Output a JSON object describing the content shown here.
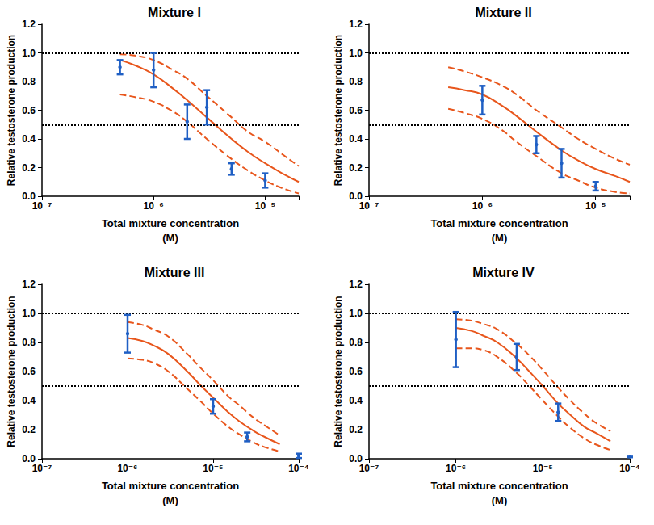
{
  "chart_data": [
    {
      "type": "line",
      "title": "Mixture I",
      "x_label": "Total mixture concentration\n(M)",
      "y_label": "Relative testosterone production",
      "log": "x",
      "grid": false,
      "xlim": [
        1e-07,
        2e-05
      ],
      "xticks": [
        {
          "value": 1e-07,
          "label": "10⁻⁷"
        },
        {
          "value": 1e-06,
          "label": "10⁻⁶"
        },
        {
          "value": 1e-05,
          "label": "10⁻⁵"
        }
      ],
      "ylim": [
        0,
        1.2
      ],
      "yticks": [
        {
          "value": 0,
          "label": "0.0"
        },
        {
          "value": 0.2,
          "label": "0.2"
        },
        {
          "value": 0.4,
          "label": "0.4"
        },
        {
          "value": 0.6,
          "label": "0.6"
        },
        {
          "value": 0.8,
          "label": "0.8"
        },
        {
          "value": 1,
          "label": "1.0"
        },
        {
          "value": 1.2,
          "label": "1.2"
        }
      ],
      "hlines": [
        1,
        0.5
      ],
      "x": [
        5e-07,
        7e-07,
        1e-06,
        1.5e-06,
        2e-06,
        3e-06,
        5e-06,
        7e-06,
        1e-05,
        1.5e-05,
        2e-05
      ],
      "series": [
        {
          "type": "line",
          "line_style": "solid",
          "color": "#e8561c",
          "values": [
            0.95,
            0.91,
            0.85,
            0.75,
            0.67,
            0.55,
            0.4,
            0.31,
            0.23,
            0.15,
            0.1
          ]
        },
        {
          "type": "line",
          "line_style": "dashed",
          "color": "#e8561c",
          "values": [
            0.99,
            0.98,
            0.95,
            0.88,
            0.82,
            0.7,
            0.55,
            0.45,
            0.38,
            0.28,
            0.21
          ]
        },
        {
          "type": "line",
          "line_style": "dashed",
          "color": "#e8561c",
          "values": [
            0.71,
            0.69,
            0.66,
            0.59,
            0.52,
            0.4,
            0.26,
            0.18,
            0.11,
            0.05,
            0.02
          ]
        },
        {
          "type": "scatter",
          "marker": "circle",
          "color": "#1f5fc4",
          "x": [
            5e-07,
            1e-06,
            2e-06,
            3e-06,
            5e-06,
            1e-05
          ],
          "values": [
            0.9,
            0.88,
            0.52,
            0.62,
            0.19,
            0.11
          ],
          "yerr": [
            0.05,
            0.12,
            0.12,
            0.12,
            0.04,
            0.05
          ]
        }
      ]
    },
    {
      "type": "line",
      "title": "Mixture II",
      "x_label": "Total mixture concentration\n(M)",
      "y_label": "Relative testosterone production",
      "log": "x",
      "grid": false,
      "xlim": [
        1e-07,
        2e-05
      ],
      "xticks": [
        {
          "value": 1e-07,
          "label": "10⁻⁷"
        },
        {
          "value": 1e-06,
          "label": "10⁻⁶"
        },
        {
          "value": 1e-05,
          "label": "10⁻⁵"
        }
      ],
      "ylim": [
        0,
        1.2
      ],
      "yticks": [
        {
          "value": 0,
          "label": "0.0"
        },
        {
          "value": 0.2,
          "label": "0.2"
        },
        {
          "value": 0.4,
          "label": "0.4"
        },
        {
          "value": 0.6,
          "label": "0.6"
        },
        {
          "value": 0.8,
          "label": "0.8"
        },
        {
          "value": 1,
          "label": "1.0"
        },
        {
          "value": 1.2,
          "label": "1.2"
        }
      ],
      "hlines": [
        1,
        0.5
      ],
      "x": [
        5e-07,
        7e-07,
        1e-06,
        1.5e-06,
        2e-06,
        3e-06,
        5e-06,
        7e-06,
        1e-05,
        1.5e-05,
        2e-05
      ],
      "series": [
        {
          "type": "line",
          "line_style": "solid",
          "color": "#e8561c",
          "values": [
            0.76,
            0.74,
            0.71,
            0.63,
            0.56,
            0.45,
            0.32,
            0.25,
            0.19,
            0.14,
            0.1
          ]
        },
        {
          "type": "line",
          "line_style": "dashed",
          "color": "#e8561c",
          "values": [
            0.9,
            0.87,
            0.83,
            0.77,
            0.71,
            0.6,
            0.48,
            0.4,
            0.33,
            0.26,
            0.22
          ]
        },
        {
          "type": "line",
          "line_style": "dashed",
          "color": "#e8561c",
          "values": [
            0.61,
            0.58,
            0.54,
            0.46,
            0.38,
            0.28,
            0.16,
            0.11,
            0.06,
            0.03,
            0.02
          ]
        },
        {
          "type": "scatter",
          "marker": "circle",
          "color": "#1f5fc4",
          "x": [
            1e-06,
            3e-06,
            5e-06,
            1e-05
          ],
          "values": [
            0.67,
            0.36,
            0.23,
            0.07
          ],
          "yerr": [
            0.1,
            0.06,
            0.1,
            0.03
          ]
        }
      ]
    },
    {
      "type": "line",
      "title": "Mixture III",
      "x_label": "Total mixture concentration\n(M)",
      "y_label": "Relative testosterone production",
      "log": "x",
      "grid": false,
      "xlim": [
        1e-07,
        0.0001
      ],
      "xticks": [
        {
          "value": 1e-07,
          "label": "10⁻⁷"
        },
        {
          "value": 1e-06,
          "label": "10⁻⁶"
        },
        {
          "value": 1e-05,
          "label": "10⁻⁵"
        },
        {
          "value": 0.0001,
          "label": "10⁻⁴"
        }
      ],
      "ylim": [
        0,
        1.2
      ],
      "yticks": [
        {
          "value": 0,
          "label": "0.0"
        },
        {
          "value": 0.2,
          "label": "0.2"
        },
        {
          "value": 0.4,
          "label": "0.4"
        },
        {
          "value": 0.6,
          "label": "0.6"
        },
        {
          "value": 0.8,
          "label": "0.8"
        },
        {
          "value": 1,
          "label": "1.0"
        },
        {
          "value": 1.2,
          "label": "1.2"
        }
      ],
      "hlines": [
        1,
        0.5
      ],
      "x": [
        1e-06,
        1.5e-06,
        2e-06,
        3e-06,
        5e-06,
        7e-06,
        1e-05,
        1.5e-05,
        2e-05,
        3e-05,
        4e-05,
        6e-05
      ],
      "series": [
        {
          "type": "line",
          "line_style": "solid",
          "color": "#e8561c",
          "values": [
            0.83,
            0.81,
            0.78,
            0.72,
            0.6,
            0.51,
            0.42,
            0.32,
            0.26,
            0.19,
            0.15,
            0.1
          ]
        },
        {
          "type": "line",
          "line_style": "dashed",
          "color": "#e8561c",
          "values": [
            0.94,
            0.92,
            0.89,
            0.84,
            0.72,
            0.63,
            0.54,
            0.43,
            0.37,
            0.28,
            0.23,
            0.16
          ]
        },
        {
          "type": "line",
          "line_style": "dashed",
          "color": "#e8561c",
          "values": [
            0.69,
            0.68,
            0.66,
            0.6,
            0.48,
            0.4,
            0.31,
            0.22,
            0.17,
            0.11,
            0.08,
            0.05
          ]
        },
        {
          "type": "scatter",
          "marker": "circle",
          "color": "#1f5fc4",
          "x": [
            1e-06,
            1e-05,
            2.5e-05,
            0.0001
          ],
          "values": [
            0.86,
            0.36,
            0.15,
            0.02
          ],
          "yerr": [
            0.13,
            0.05,
            0.03,
            0.015
          ]
        }
      ]
    },
    {
      "type": "line",
      "title": "Mixture IV",
      "x_label": "Total mixture concentration\n(M)",
      "y_label": "Relative testosterone production",
      "log": "x",
      "grid": false,
      "xlim": [
        1e-07,
        0.0001
      ],
      "xticks": [
        {
          "value": 1e-07,
          "label": "10⁻⁷"
        },
        {
          "value": 1e-06,
          "label": "10⁻⁶"
        },
        {
          "value": 1e-05,
          "label": "10⁻⁵"
        },
        {
          "value": 0.0001,
          "label": "10⁻⁴"
        }
      ],
      "ylim": [
        0,
        1.2
      ],
      "yticks": [
        {
          "value": 0,
          "label": "0.0"
        },
        {
          "value": 0.2,
          "label": "0.2"
        },
        {
          "value": 0.4,
          "label": "0.4"
        },
        {
          "value": 0.6,
          "label": "0.6"
        },
        {
          "value": 0.8,
          "label": "0.8"
        },
        {
          "value": 1,
          "label": "1.0"
        },
        {
          "value": 1.2,
          "label": "1.2"
        }
      ],
      "hlines": [
        1,
        0.5
      ],
      "x": [
        1e-06,
        1.5e-06,
        2e-06,
        3e-06,
        5e-06,
        7e-06,
        1e-05,
        1.5e-05,
        2e-05,
        3e-05,
        4e-05,
        6e-05
      ],
      "series": [
        {
          "type": "line",
          "line_style": "solid",
          "color": "#e8561c",
          "values": [
            0.9,
            0.88,
            0.85,
            0.8,
            0.69,
            0.6,
            0.5,
            0.38,
            0.31,
            0.22,
            0.18,
            0.12
          ]
        },
        {
          "type": "line",
          "line_style": "dashed",
          "color": "#e8561c",
          "values": [
            0.96,
            0.95,
            0.93,
            0.89,
            0.79,
            0.71,
            0.61,
            0.49,
            0.41,
            0.31,
            0.25,
            0.19
          ]
        },
        {
          "type": "line",
          "line_style": "dashed",
          "color": "#e8561c",
          "values": [
            0.76,
            0.76,
            0.75,
            0.7,
            0.59,
            0.5,
            0.4,
            0.29,
            0.22,
            0.14,
            0.1,
            0.06
          ]
        },
        {
          "type": "scatter",
          "marker": "circle",
          "color": "#1f5fc4",
          "x": [
            1e-06,
            5e-06,
            1.5e-05,
            0.0001
          ],
          "values": [
            0.82,
            0.7,
            0.32,
            0.015
          ],
          "yerr": [
            0.19,
            0.09,
            0.06,
            0.005
          ]
        }
      ]
    }
  ]
}
